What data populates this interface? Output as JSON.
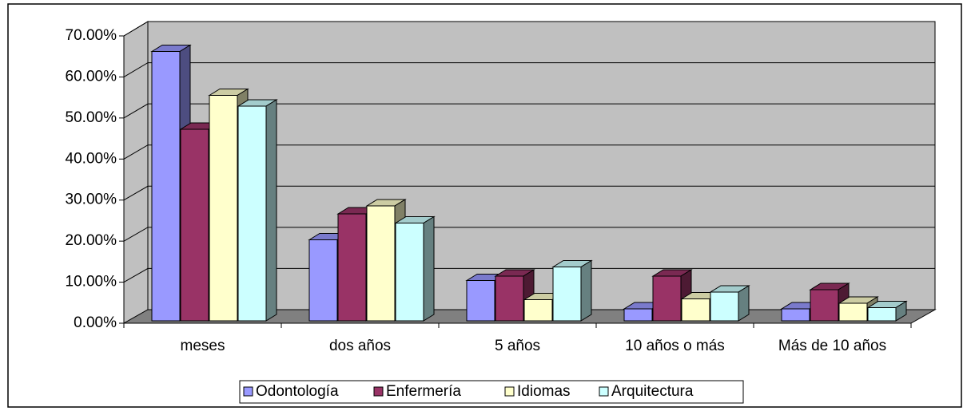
{
  "chart_data": {
    "type": "bar3d",
    "categories": [
      "meses",
      "dos años",
      "5 años",
      "10 años o más",
      "Más de 10 años"
    ],
    "series": [
      {
        "name": "Odontología",
        "color": "#9999ff",
        "values": [
          67.5,
          20.3,
          10.1,
          3.0,
          3.0
        ]
      },
      {
        "name": "Enfermería",
        "color": "#993366",
        "values": [
          48.0,
          26.8,
          11.2,
          11.2,
          7.8
        ]
      },
      {
        "name": "Idiomas",
        "color": "#ffffcc",
        "values": [
          56.5,
          28.8,
          5.3,
          5.5,
          4.4
        ]
      },
      {
        "name": "Arquitectura",
        "color": "#ccffff",
        "values": [
          53.8,
          24.5,
          13.5,
          7.2,
          3.3
        ]
      }
    ],
    "ylim": [
      0,
      70
    ],
    "yticks": [
      {
        "value": 0,
        "label": "0.00%"
      },
      {
        "value": 10,
        "label": "10.00%"
      },
      {
        "value": 20,
        "label": "20.00%"
      },
      {
        "value": 30,
        "label": "30.00%"
      },
      {
        "value": 40,
        "label": "40.00%"
      },
      {
        "value": 50,
        "label": "50.00%"
      },
      {
        "value": 60,
        "label": "60.00%"
      },
      {
        "value": 70,
        "label": "70.00%"
      }
    ],
    "grid": true,
    "legend": "bottom"
  }
}
